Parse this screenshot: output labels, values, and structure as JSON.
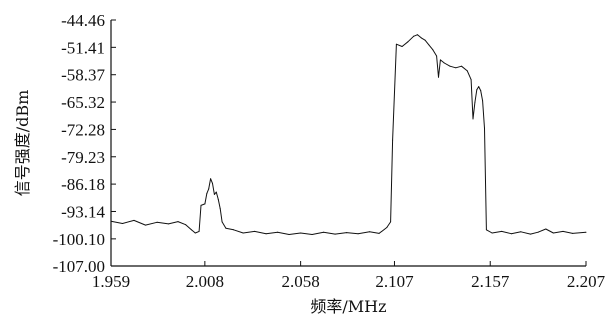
{
  "chart_data": {
    "type": "line",
    "title": "",
    "xlabel": "频率/MHz",
    "ylabel": "信号强度/dBm",
    "xlim": [
      1.959,
      2.207
    ],
    "ylim": [
      -107.0,
      -44.46
    ],
    "x_ticks": [
      "1.959",
      "2.008",
      "2.058",
      "2.107",
      "2.157",
      "2.207"
    ],
    "y_ticks": [
      "-44.46",
      "-51.41",
      "-58.37",
      "-65.32",
      "-72.28",
      "-79.23",
      "-86.18",
      "-93.14",
      "-100.10",
      "-107.00"
    ],
    "grid": false,
    "legend": "none",
    "series": [
      {
        "values": [
          {
            "x": 1.959,
            "y": -95.6
          },
          {
            "x": 1.965,
            "y": -96.2
          },
          {
            "x": 1.971,
            "y": -95.4
          },
          {
            "x": 1.977,
            "y": -96.6
          },
          {
            "x": 1.983,
            "y": -95.9
          },
          {
            "x": 1.989,
            "y": -96.3
          },
          {
            "x": 1.994,
            "y": -95.7
          },
          {
            "x": 1.998,
            "y": -96.5
          },
          {
            "x": 2.001,
            "y": -97.8
          },
          {
            "x": 2.003,
            "y": -98.6
          },
          {
            "x": 2.005,
            "y": -98.2
          },
          {
            "x": 2.006,
            "y": -91.6
          },
          {
            "x": 2.008,
            "y": -91.2
          },
          {
            "x": 2.009,
            "y": -88.6
          },
          {
            "x": 2.01,
            "y": -87.4
          },
          {
            "x": 2.011,
            "y": -84.8
          },
          {
            "x": 2.012,
            "y": -86.0
          },
          {
            "x": 2.013,
            "y": -88.8
          },
          {
            "x": 2.014,
            "y": -88.2
          },
          {
            "x": 2.015,
            "y": -90.1
          },
          {
            "x": 2.016,
            "y": -92.4
          },
          {
            "x": 2.017,
            "y": -95.8
          },
          {
            "x": 2.019,
            "y": -97.4
          },
          {
            "x": 2.023,
            "y": -97.8
          },
          {
            "x": 2.028,
            "y": -98.6
          },
          {
            "x": 2.034,
            "y": -98.2
          },
          {
            "x": 2.04,
            "y": -98.8
          },
          {
            "x": 2.046,
            "y": -98.4
          },
          {
            "x": 2.052,
            "y": -99.0
          },
          {
            "x": 2.058,
            "y": -98.6
          },
          {
            "x": 2.064,
            "y": -99.0
          },
          {
            "x": 2.07,
            "y": -98.4
          },
          {
            "x": 2.076,
            "y": -98.9
          },
          {
            "x": 2.082,
            "y": -98.5
          },
          {
            "x": 2.088,
            "y": -98.8
          },
          {
            "x": 2.094,
            "y": -98.3
          },
          {
            "x": 2.099,
            "y": -98.7
          },
          {
            "x": 2.103,
            "y": -97.2
          },
          {
            "x": 2.105,
            "y": -95.8
          },
          {
            "x": 2.106,
            "y": -75.0
          },
          {
            "x": 2.108,
            "y": -50.6
          },
          {
            "x": 2.111,
            "y": -51.2
          },
          {
            "x": 2.114,
            "y": -50.0
          },
          {
            "x": 2.117,
            "y": -48.6
          },
          {
            "x": 2.119,
            "y": -48.2
          },
          {
            "x": 2.121,
            "y": -49.0
          },
          {
            "x": 2.123,
            "y": -49.6
          },
          {
            "x": 2.125,
            "y": -50.8
          },
          {
            "x": 2.127,
            "y": -52.0
          },
          {
            "x": 2.129,
            "y": -53.6
          },
          {
            "x": 2.13,
            "y": -59.0
          },
          {
            "x": 2.131,
            "y": -54.6
          },
          {
            "x": 2.133,
            "y": -55.4
          },
          {
            "x": 2.136,
            "y": -56.2
          },
          {
            "x": 2.139,
            "y": -56.6
          },
          {
            "x": 2.142,
            "y": -56.2
          },
          {
            "x": 2.145,
            "y": -57.4
          },
          {
            "x": 2.147,
            "y": -59.6
          },
          {
            "x": 2.148,
            "y": -69.6
          },
          {
            "x": 2.149,
            "y": -65.4
          },
          {
            "x": 2.15,
            "y": -62.2
          },
          {
            "x": 2.151,
            "y": -61.4
          },
          {
            "x": 2.152,
            "y": -62.4
          },
          {
            "x": 2.153,
            "y": -65.0
          },
          {
            "x": 2.154,
            "y": -72.0
          },
          {
            "x": 2.155,
            "y": -97.8
          },
          {
            "x": 2.158,
            "y": -98.6
          },
          {
            "x": 2.163,
            "y": -98.2
          },
          {
            "x": 2.168,
            "y": -98.8
          },
          {
            "x": 2.173,
            "y": -98.3
          },
          {
            "x": 2.178,
            "y": -98.9
          },
          {
            "x": 2.182,
            "y": -98.4
          },
          {
            "x": 2.186,
            "y": -97.6
          },
          {
            "x": 2.19,
            "y": -98.6
          },
          {
            "x": 2.195,
            "y": -98.2
          },
          {
            "x": 2.2,
            "y": -98.7
          },
          {
            "x": 2.207,
            "y": -98.4
          }
        ]
      }
    ]
  }
}
